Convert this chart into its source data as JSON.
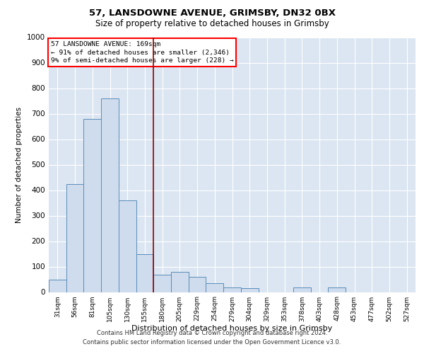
{
  "title_line1": "57, LANSDOWNE AVENUE, GRIMSBY, DN32 0BX",
  "title_line2": "Size of property relative to detached houses in Grimsby",
  "xlabel": "Distribution of detached houses by size in Grimsby",
  "ylabel": "Number of detached properties",
  "bar_color": "#cfdcee",
  "bar_edge_color": "#5b8db8",
  "background_color": "#dce6f2",
  "categories": [
    "31sqm",
    "56sqm",
    "81sqm",
    "105sqm",
    "130sqm",
    "155sqm",
    "180sqm",
    "205sqm",
    "229sqm",
    "254sqm",
    "279sqm",
    "304sqm",
    "329sqm",
    "353sqm",
    "378sqm",
    "403sqm",
    "428sqm",
    "453sqm",
    "477sqm",
    "502sqm",
    "527sqm"
  ],
  "values": [
    50,
    425,
    680,
    760,
    360,
    150,
    68,
    80,
    60,
    35,
    18,
    15,
    0,
    0,
    17,
    0,
    17,
    0,
    0,
    0,
    0
  ],
  "ylim": [
    0,
    1000
  ],
  "yticks": [
    0,
    100,
    200,
    300,
    400,
    500,
    600,
    700,
    800,
    900,
    1000
  ],
  "annotation_text_line1": "57 LANSDOWNE AVENUE: 169sqm",
  "annotation_text_line2": "← 91% of detached houses are smaller (2,346)",
  "annotation_text_line3": "9% of semi-detached houses are larger (228) →",
  "vline_position": 5.5,
  "footer_line1": "Contains HM Land Registry data © Crown copyright and database right 2024.",
  "footer_line2": "Contains public sector information licensed under the Open Government Licence v3.0."
}
